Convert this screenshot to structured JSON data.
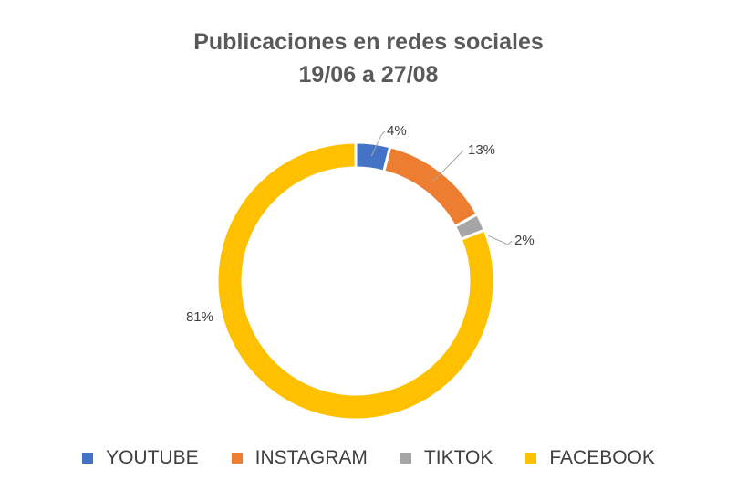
{
  "chart_data": {
    "type": "pie",
    "style": "donut",
    "title": "Publicaciones en redes sociales",
    "subtitle": "19/06 a 27/08",
    "categories": [
      "YOUTUBE",
      "INSTAGRAM",
      "TIKTOK",
      "FACEBOOK"
    ],
    "values": [
      4,
      13,
      2,
      81
    ],
    "labels": [
      "4%",
      "13%",
      "2%",
      "81%"
    ],
    "colors": [
      "#4472C4",
      "#ED7D31",
      "#A5A5A5",
      "#FFC000"
    ],
    "legend": "bottom"
  }
}
